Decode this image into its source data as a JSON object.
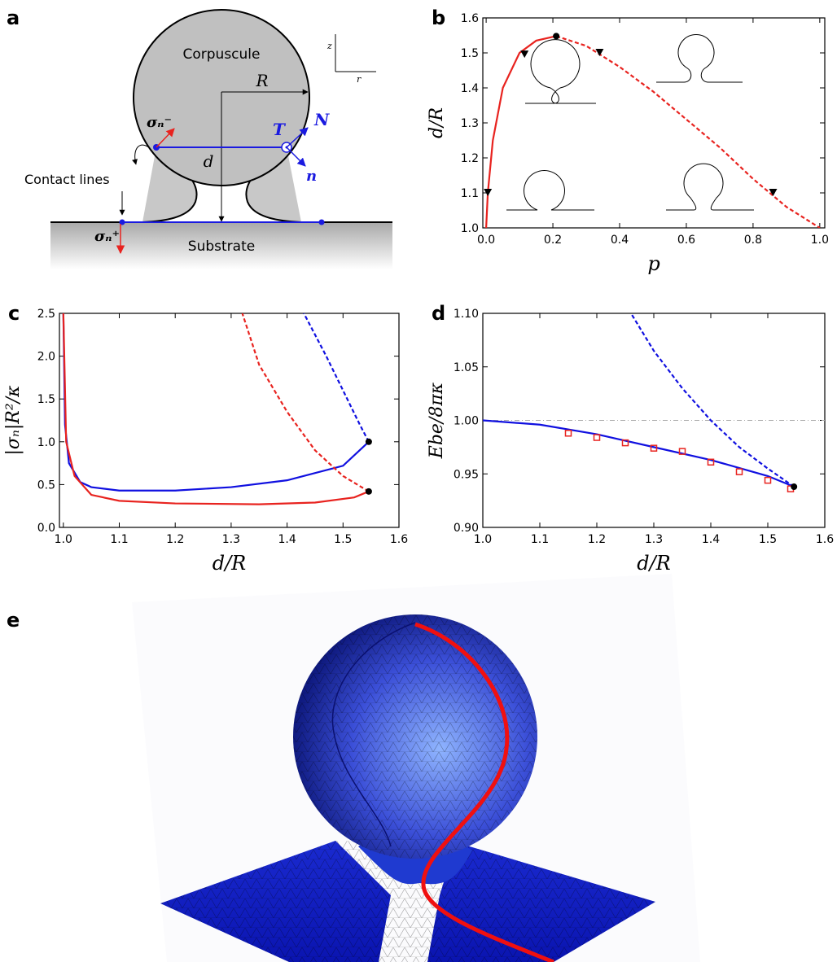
{
  "diagram": {
    "panel": "a",
    "body": "Corpuscule",
    "radius": "R",
    "distance": "d",
    "tangent": "T",
    "normal_big": "N",
    "normal_small": "n",
    "contact": "Contact lines",
    "substrate": "Substrate",
    "axis_z": "z",
    "axis_r": "r",
    "stress_minus": "σₙ⁻",
    "stress_plus": "σₙ⁺"
  },
  "chart_data": [
    {
      "type": "line",
      "panel": "b",
      "xlabel": "p",
      "ylabel": "d/R",
      "xlim": [
        -0.01,
        1.015
      ],
      "ylim": [
        1.0,
        1.6
      ],
      "xticks": [
        {
          "value": 0,
          "label": "0.0"
        },
        {
          "value": 0.2,
          "label": "0.2"
        },
        {
          "value": 0.4,
          "label": "0.4"
        },
        {
          "value": 0.6,
          "label": "0.6"
        },
        {
          "value": 0.8,
          "label": "0.8"
        },
        {
          "value": 1,
          "label": "1.0"
        }
      ],
      "yticks": [
        {
          "value": 1,
          "label": "1.0"
        },
        {
          "value": 1.1,
          "label": "1.1"
        },
        {
          "value": 1.2,
          "label": "1.2"
        },
        {
          "value": 1.3,
          "label": "1.3"
        },
        {
          "value": 1.4,
          "label": "1.4"
        },
        {
          "value": 1.5,
          "label": "1.5"
        },
        {
          "value": 1.6,
          "label": "1.6"
        }
      ],
      "series": [
        {
          "color": "#e8231f",
          "style": "solid",
          "x": [
            0,
            0.005,
            0.02,
            0.05,
            0.1,
            0.15,
            0.21
          ],
          "values": [
            1,
            1.1,
            1.25,
            1.4,
            1.5,
            1.535,
            1.548
          ]
        },
        {
          "color": "#e8231f",
          "style": "dashed",
          "x": [
            0.21,
            0.3,
            0.4,
            0.5,
            0.6,
            0.7,
            0.8,
            0.9,
            1.0
          ],
          "values": [
            1.548,
            1.52,
            1.46,
            1.39,
            1.31,
            1.23,
            1.14,
            1.06,
            1.0
          ]
        },
        {
          "color": "#000000",
          "style": "triangle",
          "x": [
            0.005,
            0.115,
            0.34,
            0.86
          ],
          "values": [
            1.1,
            1.495,
            1.5,
            1.1
          ]
        },
        {
          "color": "#000000",
          "style": "dot",
          "x": [
            0.21
          ],
          "values": [
            1.548
          ]
        }
      ]
    },
    {
      "type": "line",
      "panel": "c",
      "xlabel": "d/R",
      "ylabel": "|σₙ|R²/κ",
      "xlim": [
        0.993,
        1.6
      ],
      "ylim": [
        0,
        2.5
      ],
      "xticks": [
        {
          "value": 1,
          "label": "1.0"
        },
        1.1,
        1.2,
        1.3,
        1.4,
        1.5,
        1.6
      ],
      "yticks": [
        {
          "value": 0,
          "label": "0.0"
        },
        0.5,
        {
          "value": 1,
          "label": "1.0"
        },
        1.5,
        {
          "value": 2,
          "label": "2.0"
        },
        2.5
      ],
      "series": [
        {
          "color": "#1010e0",
          "style": "solid",
          "x": [
            1.0,
            1.003,
            1.01,
            1.03,
            1.05,
            1.1,
            1.2,
            1.3,
            1.4,
            1.5,
            1.546
          ],
          "values": [
            2.5,
            1.2,
            0.75,
            0.53,
            0.47,
            0.43,
            0.43,
            0.47,
            0.55,
            0.72,
            1.0
          ]
        },
        {
          "color": "#1010e0",
          "style": "dashed",
          "x": [
            1.546,
            1.53,
            1.5,
            1.47,
            1.43
          ],
          "values": [
            1.0,
            1.2,
            1.6,
            2.0,
            2.5
          ]
        },
        {
          "color": "#e8231f",
          "style": "solid",
          "x": [
            1.0,
            1.005,
            1.02,
            1.05,
            1.1,
            1.2,
            1.35,
            1.45,
            1.52,
            1.546
          ],
          "values": [
            2.5,
            1.0,
            0.6,
            0.38,
            0.31,
            0.28,
            0.27,
            0.29,
            0.35,
            0.42
          ]
        },
        {
          "color": "#e8231f",
          "style": "dashed",
          "x": [
            1.546,
            1.5,
            1.45,
            1.4,
            1.35,
            1.32
          ],
          "values": [
            0.42,
            0.6,
            0.9,
            1.35,
            1.9,
            2.5
          ]
        },
        {
          "color": "#000000",
          "style": "dot",
          "x": [
            1.546,
            1.546
          ],
          "values": [
            1.0,
            0.42
          ]
        }
      ]
    },
    {
      "type": "line",
      "panel": "d",
      "xlabel": "d/R",
      "ylabel": "Ebe/8πκ",
      "xlim": [
        1.0,
        1.6
      ],
      "ylim": [
        0.9,
        1.1
      ],
      "xticks": [
        {
          "value": 1,
          "label": "1.0"
        },
        1.1,
        1.2,
        1.3,
        1.4,
        1.5,
        1.6
      ],
      "yticks": [
        {
          "value": 0.9,
          "label": "0.90"
        },
        0.95,
        {
          "value": 1,
          "label": "1.00"
        },
        1.05,
        {
          "value": 1.1,
          "label": "1.10"
        }
      ],
      "series": [
        {
          "color": "#aaaaaa",
          "style": "dashdot",
          "x": [
            1.0,
            1.6
          ],
          "values": [
            1.0,
            1.0
          ]
        },
        {
          "color": "#1010e0",
          "style": "solid",
          "x": [
            1.0,
            1.1,
            1.2,
            1.3,
            1.4,
            1.5,
            1.546
          ],
          "values": [
            1.0,
            0.996,
            0.987,
            0.975,
            0.963,
            0.948,
            0.938
          ]
        },
        {
          "color": "#1010e0",
          "style": "dashed",
          "x": [
            1.546,
            1.5,
            1.45,
            1.4,
            1.35,
            1.3,
            1.26
          ],
          "values": [
            0.938,
            0.955,
            0.975,
            1.0,
            1.03,
            1.065,
            1.1
          ]
        },
        {
          "color": "#e8231f",
          "style": "square",
          "x": [
            1.15,
            1.2,
            1.25,
            1.3,
            1.35,
            1.4,
            1.45,
            1.5,
            1.54
          ],
          "values": [
            0.988,
            0.984,
            0.979,
            0.974,
            0.971,
            0.961,
            0.952,
            0.944,
            0.936
          ]
        },
        {
          "color": "#000000",
          "style": "dot",
          "x": [
            1.546
          ],
          "values": [
            0.938
          ]
        }
      ]
    }
  ],
  "render": {
    "panel": "e"
  }
}
